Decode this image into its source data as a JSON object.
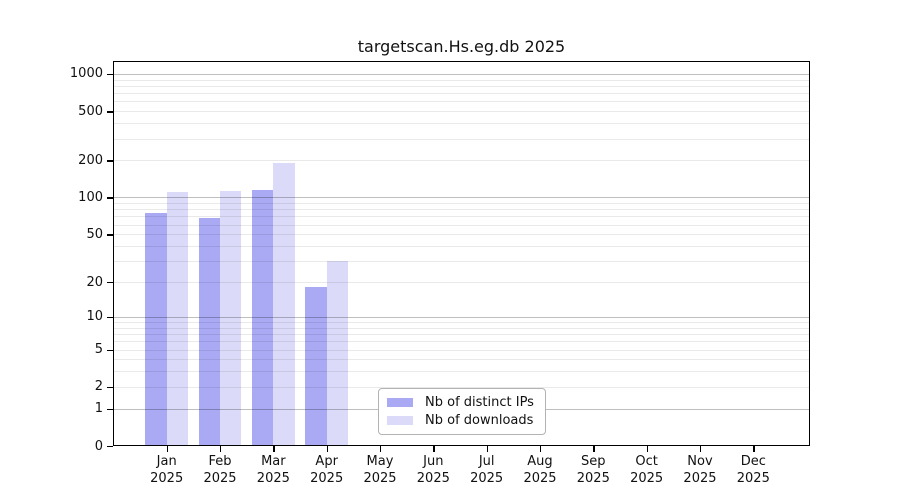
{
  "title": "targetscan.Hs.eg.db 2025",
  "chart_data": {
    "type": "bar",
    "title": "targetscan.Hs.eg.db 2025",
    "categories": [
      "Jan 2025",
      "Feb 2025",
      "Mar 2025",
      "Apr 2025",
      "May 2025",
      "Jun 2025",
      "Jul 2025",
      "Aug 2025",
      "Sep 2025",
      "Oct 2025",
      "Nov 2025",
      "Dec 2025"
    ],
    "x_tick_months": [
      "Jan",
      "Feb",
      "Mar",
      "Apr",
      "May",
      "Jun",
      "Jul",
      "Aug",
      "Sep",
      "Oct",
      "Nov",
      "Dec"
    ],
    "x_tick_year": "2025",
    "series": [
      {
        "name": "Nb of distinct IPs",
        "color": "#a9a9f4",
        "values": [
          75,
          68,
          115,
          18,
          0,
          0,
          0,
          0,
          0,
          0,
          0,
          0
        ]
      },
      {
        "name": "Nb of downloads",
        "color": "#dbdbf9",
        "values": [
          110,
          113,
          190,
          30,
          0,
          0,
          0,
          0,
          0,
          0,
          0,
          0
        ]
      }
    ],
    "y_ticks": [
      0,
      1,
      2,
      5,
      10,
      20,
      50,
      100,
      200,
      500,
      1000
    ],
    "y_minor_gridlines": [
      2,
      3,
      4,
      5,
      6,
      7,
      8,
      9,
      20,
      30,
      40,
      50,
      60,
      70,
      80,
      90,
      200,
      300,
      400,
      500,
      600,
      700,
      800,
      900
    ],
    "y_major_gridlines": [
      1,
      10,
      100,
      1000
    ],
    "ylim": [
      0,
      1000
    ],
    "y_scale": "log1p",
    "xlabel": "",
    "ylabel": "",
    "grid": "horizontal",
    "legend_position": "inside-bottom-center"
  }
}
